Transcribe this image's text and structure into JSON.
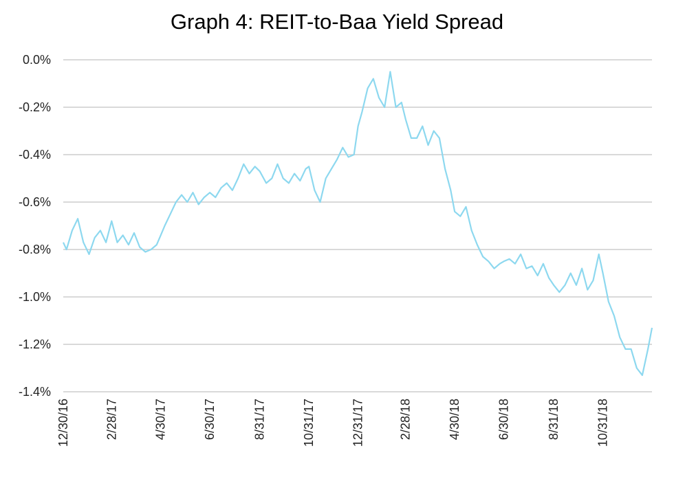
{
  "chart_data": {
    "type": "line",
    "title": "Graph 4: REIT-to-Baa Yield Spread",
    "xlabel": "",
    "ylabel": "",
    "ylim": [
      -1.4,
      0.0
    ],
    "y_tick_labels": [
      "0.0%",
      "-0.2%",
      "-0.4%",
      "-0.6%",
      "-0.8%",
      "-1.0%",
      "-1.2%",
      "-1.4%"
    ],
    "x_tick_labels": [
      "12/30/16",
      "2/28/17",
      "4/30/17",
      "6/30/17",
      "8/31/17",
      "10/31/17",
      "12/31/17",
      "2/28/18",
      "4/30/18",
      "6/30/18",
      "8/31/18",
      "10/31/18"
    ],
    "grid": "horizontal",
    "line_color": "#8dd8ef",
    "series": [
      {
        "x": [
          "2016-12-30",
          "2017-01-03",
          "2017-01-10",
          "2017-01-17",
          "2017-01-24",
          "2017-01-31",
          "2017-02-07",
          "2017-02-14",
          "2017-02-21",
          "2017-02-28",
          "2017-03-07",
          "2017-03-14",
          "2017-03-21",
          "2017-03-28",
          "2017-04-04",
          "2017-04-11",
          "2017-04-18",
          "2017-04-25",
          "2017-04-30",
          "2017-05-05",
          "2017-05-12",
          "2017-05-19",
          "2017-05-26",
          "2017-06-02",
          "2017-06-09",
          "2017-06-16",
          "2017-06-23",
          "2017-06-30",
          "2017-07-07",
          "2017-07-14",
          "2017-07-21",
          "2017-07-28",
          "2017-08-04",
          "2017-08-11",
          "2017-08-18",
          "2017-08-25",
          "2017-08-31",
          "2017-09-08",
          "2017-09-15",
          "2017-09-22",
          "2017-09-29",
          "2017-10-06",
          "2017-10-13",
          "2017-10-20",
          "2017-10-27",
          "2017-10-31",
          "2017-11-07",
          "2017-11-14",
          "2017-11-21",
          "2017-11-28",
          "2017-12-05",
          "2017-12-12",
          "2017-12-19",
          "2017-12-26",
          "2017-12-31",
          "2018-01-05",
          "2018-01-12",
          "2018-01-19",
          "2018-01-26",
          "2018-02-02",
          "2018-02-09",
          "2018-02-16",
          "2018-02-23",
          "2018-02-28",
          "2018-03-07",
          "2018-03-14",
          "2018-03-21",
          "2018-03-28",
          "2018-04-04",
          "2018-04-11",
          "2018-04-18",
          "2018-04-25",
          "2018-04-30",
          "2018-05-07",
          "2018-05-14",
          "2018-05-21",
          "2018-05-28",
          "2018-06-04",
          "2018-06-11",
          "2018-06-18",
          "2018-06-25",
          "2018-06-30",
          "2018-07-07",
          "2018-07-14",
          "2018-07-21",
          "2018-07-28",
          "2018-08-04",
          "2018-08-11",
          "2018-08-18",
          "2018-08-25",
          "2018-08-31",
          "2018-09-07",
          "2018-09-14",
          "2018-09-21",
          "2018-09-28",
          "2018-10-05",
          "2018-10-12",
          "2018-10-19",
          "2018-10-26",
          "2018-10-31",
          "2018-11-07",
          "2018-11-14",
          "2018-11-21",
          "2018-11-28",
          "2018-12-05",
          "2018-12-12",
          "2018-12-19",
          "2018-12-26",
          "2018-12-31"
        ],
        "values": [
          -0.77,
          -0.8,
          -0.72,
          -0.67,
          -0.77,
          -0.82,
          -0.75,
          -0.72,
          -0.77,
          -0.68,
          -0.77,
          -0.74,
          -0.78,
          -0.73,
          -0.79,
          -0.81,
          -0.8,
          -0.78,
          -0.74,
          -0.7,
          -0.65,
          -0.6,
          -0.57,
          -0.6,
          -0.56,
          -0.61,
          -0.58,
          -0.56,
          -0.58,
          -0.54,
          -0.52,
          -0.55,
          -0.5,
          -0.44,
          -0.48,
          -0.45,
          -0.47,
          -0.52,
          -0.5,
          -0.44,
          -0.5,
          -0.52,
          -0.48,
          -0.51,
          -0.46,
          -0.45,
          -0.55,
          -0.6,
          -0.5,
          -0.46,
          -0.42,
          -0.37,
          -0.41,
          -0.4,
          -0.28,
          -0.22,
          -0.12,
          -0.08,
          -0.16,
          -0.2,
          -0.05,
          -0.2,
          -0.18,
          -0.25,
          -0.33,
          -0.33,
          -0.28,
          -0.36,
          -0.3,
          -0.33,
          -0.46,
          -0.55,
          -0.64,
          -0.66,
          -0.62,
          -0.72,
          -0.78,
          -0.83,
          -0.85,
          -0.88,
          -0.86,
          -0.85,
          -0.84,
          -0.86,
          -0.82,
          -0.88,
          -0.87,
          -0.91,
          -0.86,
          -0.92,
          -0.95,
          -0.98,
          -0.95,
          -0.9,
          -0.95,
          -0.88,
          -0.97,
          -0.93,
          -0.82,
          -0.9,
          -1.02,
          -1.08,
          -1.17,
          -1.22,
          -1.22,
          -1.3,
          -1.33,
          -1.22,
          -1.13
        ]
      }
    ]
  }
}
